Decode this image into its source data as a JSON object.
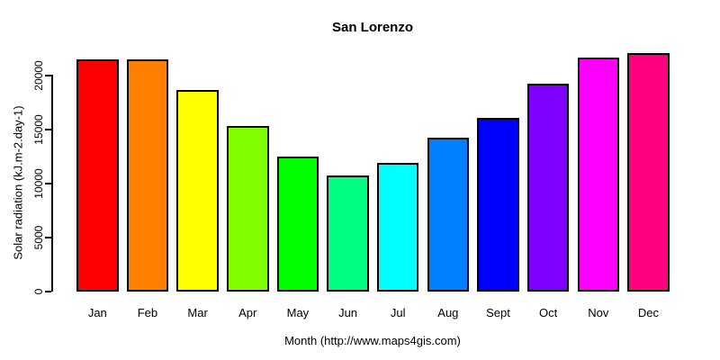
{
  "chart_data": {
    "type": "bar",
    "title": "San Lorenzo",
    "categories": [
      "Jan",
      "Feb",
      "Mar",
      "Apr",
      "May",
      "Jun",
      "Jul",
      "Aug",
      "Sept",
      "Oct",
      "Nov",
      "Dec"
    ],
    "values": [
      21450,
      21450,
      18600,
      15250,
      12450,
      10700,
      11800,
      14200,
      16000,
      19150,
      21600,
      22000
    ],
    "bar_colors": [
      "#FF0000",
      "#FF8000",
      "#FFFF00",
      "#80FF00",
      "#00FF00",
      "#00FF80",
      "#00FFFF",
      "#0080FF",
      "#0000FF",
      "#8000FF",
      "#FF00FF",
      "#FF0080"
    ],
    "bar_border_color": "#000000",
    "xlabel": "Month (http://www.maps4gis.com)",
    "ylabel": "Solar radiation (kJ.m-2.day-1)",
    "ylim": [
      0,
      20000
    ],
    "yticks": [
      0,
      5000,
      10000,
      15000,
      20000
    ],
    "ytick_labels": [
      "0",
      "5000",
      "10000",
      "15000",
      "20000"
    ],
    "grid": false,
    "legend": "none",
    "background": "#FFFFFF",
    "text_color": "#000000"
  }
}
